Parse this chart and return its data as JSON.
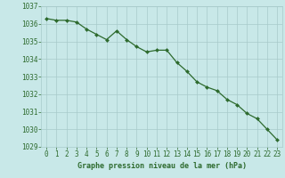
{
  "x": [
    0,
    1,
    2,
    3,
    4,
    5,
    6,
    7,
    8,
    9,
    10,
    11,
    12,
    13,
    14,
    15,
    16,
    17,
    18,
    19,
    20,
    21,
    22,
    23
  ],
  "y": [
    1036.3,
    1036.2,
    1036.2,
    1036.1,
    1035.7,
    1035.4,
    1035.1,
    1035.6,
    1035.1,
    1034.7,
    1034.4,
    1034.5,
    1034.5,
    1033.8,
    1033.3,
    1032.7,
    1032.4,
    1032.2,
    1031.7,
    1031.4,
    1030.9,
    1030.6,
    1030.0,
    1029.4
  ],
  "line_color": "#2d6a2d",
  "marker_color": "#2d6a2d",
  "bg_color": "#c8e8e8",
  "grid_color": "#a8caca",
  "text_color": "#2d6a2d",
  "xlabel": "Graphe pression niveau de la mer (hPa)",
  "ylim": [
    1029,
    1037
  ],
  "yticks": [
    1029,
    1030,
    1031,
    1032,
    1033,
    1034,
    1035,
    1036,
    1037
  ],
  "xticks": [
    0,
    1,
    2,
    3,
    4,
    5,
    6,
    7,
    8,
    9,
    10,
    11,
    12,
    13,
    14,
    15,
    16,
    17,
    18,
    19,
    20,
    21,
    22,
    23
  ]
}
